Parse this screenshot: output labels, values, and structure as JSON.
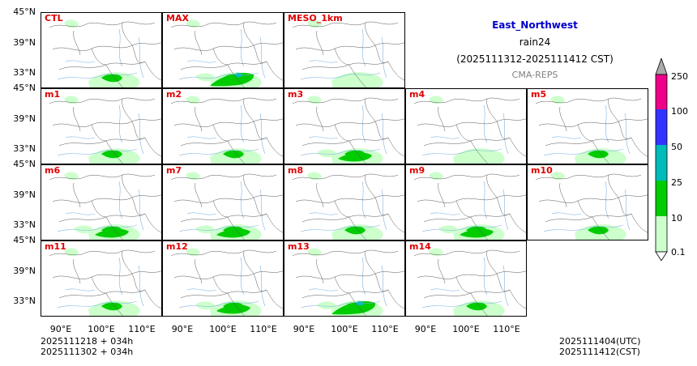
{
  "title": {
    "region": "East_Northwest",
    "variable": "rain24",
    "period": "(2025111312-2025111412 CST)",
    "model": "CMA-REPS",
    "region_color": "#0000cc",
    "model_color": "#808080"
  },
  "axes": {
    "lat_labels": [
      "45°N",
      "39°N",
      "33°N"
    ],
    "lon_labels": [
      "90°E",
      "100°E",
      "110°E"
    ]
  },
  "panels": [
    {
      "label": "CTL",
      "intensity": 1
    },
    {
      "label": "MAX",
      "intensity": 3
    },
    {
      "label": "MESO_1km",
      "intensity": 0
    },
    {
      "label": "m1",
      "intensity": 1
    },
    {
      "label": "m2",
      "intensity": 1
    },
    {
      "label": "m3",
      "intensity": 2
    },
    {
      "label": "m4",
      "intensity": 0
    },
    {
      "label": "m5",
      "intensity": 1
    },
    {
      "label": "m6",
      "intensity": 2
    },
    {
      "label": "m7",
      "intensity": 2
    },
    {
      "label": "m8",
      "intensity": 1
    },
    {
      "label": "m9",
      "intensity": 2
    },
    {
      "label": "m10",
      "intensity": 1
    },
    {
      "label": "m11",
      "intensity": 1
    },
    {
      "label": "m12",
      "intensity": 2
    },
    {
      "label": "m13",
      "intensity": 3
    },
    {
      "label": "m14",
      "intensity": 1
    }
  ],
  "colorbar": {
    "levels": [
      "0.1",
      "10",
      "25",
      "50",
      "100",
      "250"
    ],
    "colors": [
      "#ccffcc",
      "#00cc00",
      "#00bbbb",
      "#3333ff",
      "#ee0088"
    ],
    "over_color": "#aaaaaa",
    "under_color": "#ffffff"
  },
  "footer": {
    "left_line1": "2025111218  +  034h",
    "left_line2": "2025111302  +  034h",
    "right_line1": "2025111404(UTC)",
    "right_line2": "2025111412(CST)"
  }
}
